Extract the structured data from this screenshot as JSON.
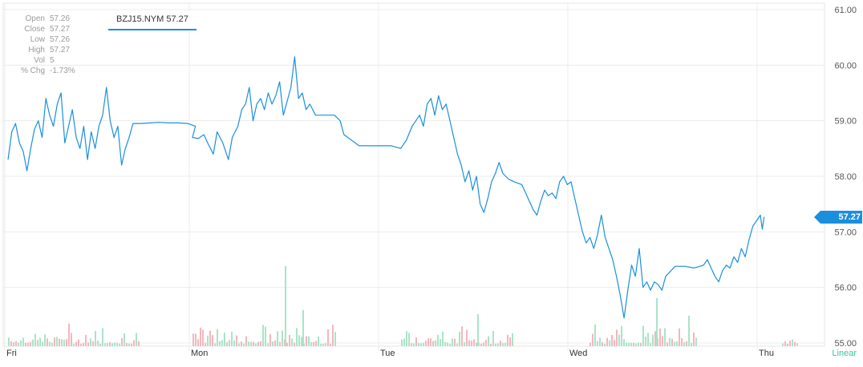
{
  "chart_data": {
    "type": "line",
    "symbol": "BZJ15.NYM",
    "last_price": "57.27",
    "legend_label": "BZJ15.NYM 57.27",
    "scale_mode": "Linear",
    "ohlc": [
      {
        "label": "Open",
        "value": "57.26"
      },
      {
        "label": "Close",
        "value": "57.27"
      },
      {
        "label": "Low",
        "value": "57.26"
      },
      {
        "label": "High",
        "value": "57.27"
      },
      {
        "label": "Vol",
        "value": "5"
      },
      {
        "label": "% Chg",
        "value": "-1.73%"
      }
    ],
    "x_ticks": [
      "Fri",
      "Mon",
      "Tue",
      "Wed",
      "Thu"
    ],
    "y_ticks": [
      "61.00",
      "60.00",
      "59.00",
      "58.00",
      "57.00",
      "56.00",
      "55.00"
    ],
    "ylim": [
      55,
      61
    ],
    "x_range": [
      0,
      4.22
    ],
    "series": [
      {
        "points": [
          [
            0.0,
            58.3
          ],
          [
            0.02,
            58.8
          ],
          [
            0.04,
            58.95
          ],
          [
            0.06,
            58.6
          ],
          [
            0.08,
            58.45
          ],
          [
            0.1,
            58.1
          ],
          [
            0.12,
            58.5
          ],
          [
            0.14,
            58.85
          ],
          [
            0.16,
            59.0
          ],
          [
            0.18,
            58.7
          ],
          [
            0.2,
            59.4
          ],
          [
            0.22,
            59.1
          ],
          [
            0.24,
            58.9
          ],
          [
            0.26,
            59.3
          ],
          [
            0.28,
            59.5
          ],
          [
            0.3,
            58.6
          ],
          [
            0.32,
            58.9
          ],
          [
            0.34,
            59.2
          ],
          [
            0.36,
            58.7
          ],
          [
            0.38,
            58.5
          ],
          [
            0.4,
            58.9
          ],
          [
            0.42,
            58.3
          ],
          [
            0.44,
            58.8
          ],
          [
            0.46,
            58.5
          ],
          [
            0.48,
            58.9
          ],
          [
            0.5,
            59.1
          ],
          [
            0.52,
            59.6
          ],
          [
            0.54,
            59.0
          ],
          [
            0.56,
            58.7
          ],
          [
            0.58,
            58.9
          ],
          [
            0.6,
            58.2
          ],
          [
            0.62,
            58.5
          ],
          [
            0.64,
            58.7
          ],
          [
            0.66,
            58.95
          ],
          [
            0.68,
            58.95
          ],
          [
            0.7,
            58.95
          ],
          [
            0.75,
            58.96
          ],
          [
            0.8,
            58.97
          ],
          [
            0.85,
            58.96
          ],
          [
            0.9,
            58.96
          ],
          [
            0.95,
            58.95
          ],
          [
            0.99,
            58.9
          ],
          [
            1.0,
            58.7
          ],
          [
            1.03,
            58.68
          ],
          [
            1.06,
            58.75
          ],
          [
            1.08,
            58.6
          ],
          [
            1.11,
            58.4
          ],
          [
            1.13,
            58.8
          ],
          [
            1.16,
            58.6
          ],
          [
            1.19,
            58.3
          ],
          [
            1.21,
            58.7
          ],
          [
            1.24,
            58.9
          ],
          [
            1.26,
            59.2
          ],
          [
            1.28,
            59.3
          ],
          [
            1.3,
            59.6
          ],
          [
            1.32,
            59.0
          ],
          [
            1.34,
            59.3
          ],
          [
            1.36,
            59.4
          ],
          [
            1.38,
            59.2
          ],
          [
            1.4,
            59.5
          ],
          [
            1.42,
            59.3
          ],
          [
            1.44,
            59.45
          ],
          [
            1.46,
            59.7
          ],
          [
            1.48,
            59.1
          ],
          [
            1.5,
            59.35
          ],
          [
            1.52,
            59.6
          ],
          [
            1.54,
            60.15
          ],
          [
            1.56,
            59.4
          ],
          [
            1.58,
            59.5
          ],
          [
            1.6,
            59.2
          ],
          [
            1.62,
            59.3
          ],
          [
            1.65,
            59.1
          ],
          [
            1.7,
            59.1
          ],
          [
            1.75,
            59.1
          ],
          [
            1.78,
            59.0
          ],
          [
            1.8,
            58.75
          ],
          [
            1.84,
            58.65
          ],
          [
            1.88,
            58.55
          ],
          [
            1.95,
            58.55
          ],
          [
            2.05,
            58.55
          ],
          [
            2.1,
            58.5
          ],
          [
            2.13,
            58.65
          ],
          [
            2.16,
            58.9
          ],
          [
            2.18,
            59.0
          ],
          [
            2.2,
            59.1
          ],
          [
            2.22,
            58.9
          ],
          [
            2.24,
            59.3
          ],
          [
            2.26,
            59.4
          ],
          [
            2.28,
            59.1
          ],
          [
            2.3,
            59.45
          ],
          [
            2.32,
            59.2
          ],
          [
            2.34,
            59.3
          ],
          [
            2.36,
            59.0
          ],
          [
            2.38,
            58.7
          ],
          [
            2.4,
            58.4
          ],
          [
            2.42,
            58.2
          ],
          [
            2.44,
            57.9
          ],
          [
            2.46,
            58.1
          ],
          [
            2.48,
            57.75
          ],
          [
            2.5,
            58.0
          ],
          [
            2.52,
            57.5
          ],
          [
            2.54,
            57.35
          ],
          [
            2.56,
            57.6
          ],
          [
            2.58,
            57.9
          ],
          [
            2.6,
            58.05
          ],
          [
            2.62,
            58.25
          ],
          [
            2.64,
            58.05
          ],
          [
            2.67,
            57.95
          ],
          [
            2.7,
            57.9
          ],
          [
            2.74,
            57.85
          ],
          [
            2.78,
            57.55
          ],
          [
            2.8,
            57.4
          ],
          [
            2.82,
            57.3
          ],
          [
            2.84,
            57.55
          ],
          [
            2.86,
            57.75
          ],
          [
            2.88,
            57.65
          ],
          [
            2.9,
            57.7
          ],
          [
            2.92,
            57.6
          ],
          [
            2.94,
            57.9
          ],
          [
            2.96,
            58.0
          ],
          [
            2.98,
            57.85
          ],
          [
            3.0,
            57.9
          ],
          [
            3.02,
            57.6
          ],
          [
            3.04,
            57.3
          ],
          [
            3.06,
            57.0
          ],
          [
            3.08,
            56.8
          ],
          [
            3.1,
            56.9
          ],
          [
            3.12,
            56.7
          ],
          [
            3.14,
            56.95
          ],
          [
            3.16,
            57.3
          ],
          [
            3.18,
            56.9
          ],
          [
            3.2,
            56.7
          ],
          [
            3.22,
            56.5
          ],
          [
            3.24,
            56.2
          ],
          [
            3.26,
            55.85
          ],
          [
            3.28,
            55.45
          ],
          [
            3.3,
            55.95
          ],
          [
            3.32,
            56.4
          ],
          [
            3.34,
            56.2
          ],
          [
            3.36,
            56.7
          ],
          [
            3.38,
            56.0
          ],
          [
            3.4,
            56.1
          ],
          [
            3.42,
            55.95
          ],
          [
            3.44,
            56.1
          ],
          [
            3.46,
            56.05
          ],
          [
            3.48,
            55.95
          ],
          [
            3.5,
            56.2
          ],
          [
            3.55,
            56.38
          ],
          [
            3.6,
            56.38
          ],
          [
            3.65,
            56.35
          ],
          [
            3.7,
            56.4
          ],
          [
            3.72,
            56.5
          ],
          [
            3.74,
            56.35
          ],
          [
            3.76,
            56.2
          ],
          [
            3.78,
            56.1
          ],
          [
            3.8,
            56.3
          ],
          [
            3.82,
            56.4
          ],
          [
            3.84,
            56.35
          ],
          [
            3.86,
            56.55
          ],
          [
            3.88,
            56.45
          ],
          [
            3.9,
            56.7
          ],
          [
            3.92,
            56.55
          ],
          [
            3.94,
            56.85
          ],
          [
            3.96,
            57.1
          ],
          [
            3.98,
            57.2
          ],
          [
            4.0,
            57.3
          ],
          [
            4.01,
            57.05
          ],
          [
            4.02,
            57.27
          ]
        ]
      }
    ]
  }
}
